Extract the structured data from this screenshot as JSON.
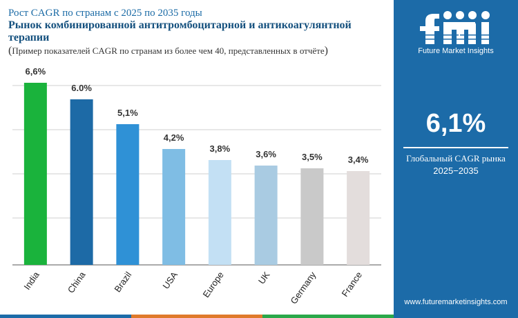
{
  "header": {
    "title_line1": "Рост CAGR по странам с 2025 по 2035 годы",
    "title_line2": "Рынок комбинированной антитромбоцитарной и антикоагулянтной терапии",
    "subtitle": "Пример показателей CAGR по странам из более чем 40, представленных в отчёте"
  },
  "sidebar": {
    "brand": "Future Market Insights",
    "headline_value": "6,1%",
    "headline_label_line1": "Глобальный CAGR рынка",
    "headline_label_line2": "2025−2035",
    "website": "www.futuremarketinsights.com"
  },
  "colors": {
    "sidebar_bg": "#1c6ba8",
    "grid": "#cfcfcf",
    "label": "#333333"
  },
  "chart_data": {
    "type": "bar",
    "categories": [
      "India",
      "China",
      "Brazil",
      "USA",
      "Europe",
      "UK",
      "Germany",
      "France"
    ],
    "values": [
      6.6,
      6.0,
      5.1,
      4.2,
      3.8,
      3.6,
      3.5,
      3.4
    ],
    "value_labels": [
      "6,6%",
      "6.0%",
      "5,1%",
      "4,2%",
      "3,8%",
      "3,6%",
      "3,5%",
      "3,4%"
    ],
    "bar_colors": [
      "#1ab33c",
      "#1d6aa6",
      "#2f91d6",
      "#7fbde4",
      "#c3e0f4",
      "#a9cbe2",
      "#c9c9c9",
      "#e3dddc"
    ],
    "ylim": [
      0,
      7
    ],
    "grid": true,
    "legend": false
  }
}
